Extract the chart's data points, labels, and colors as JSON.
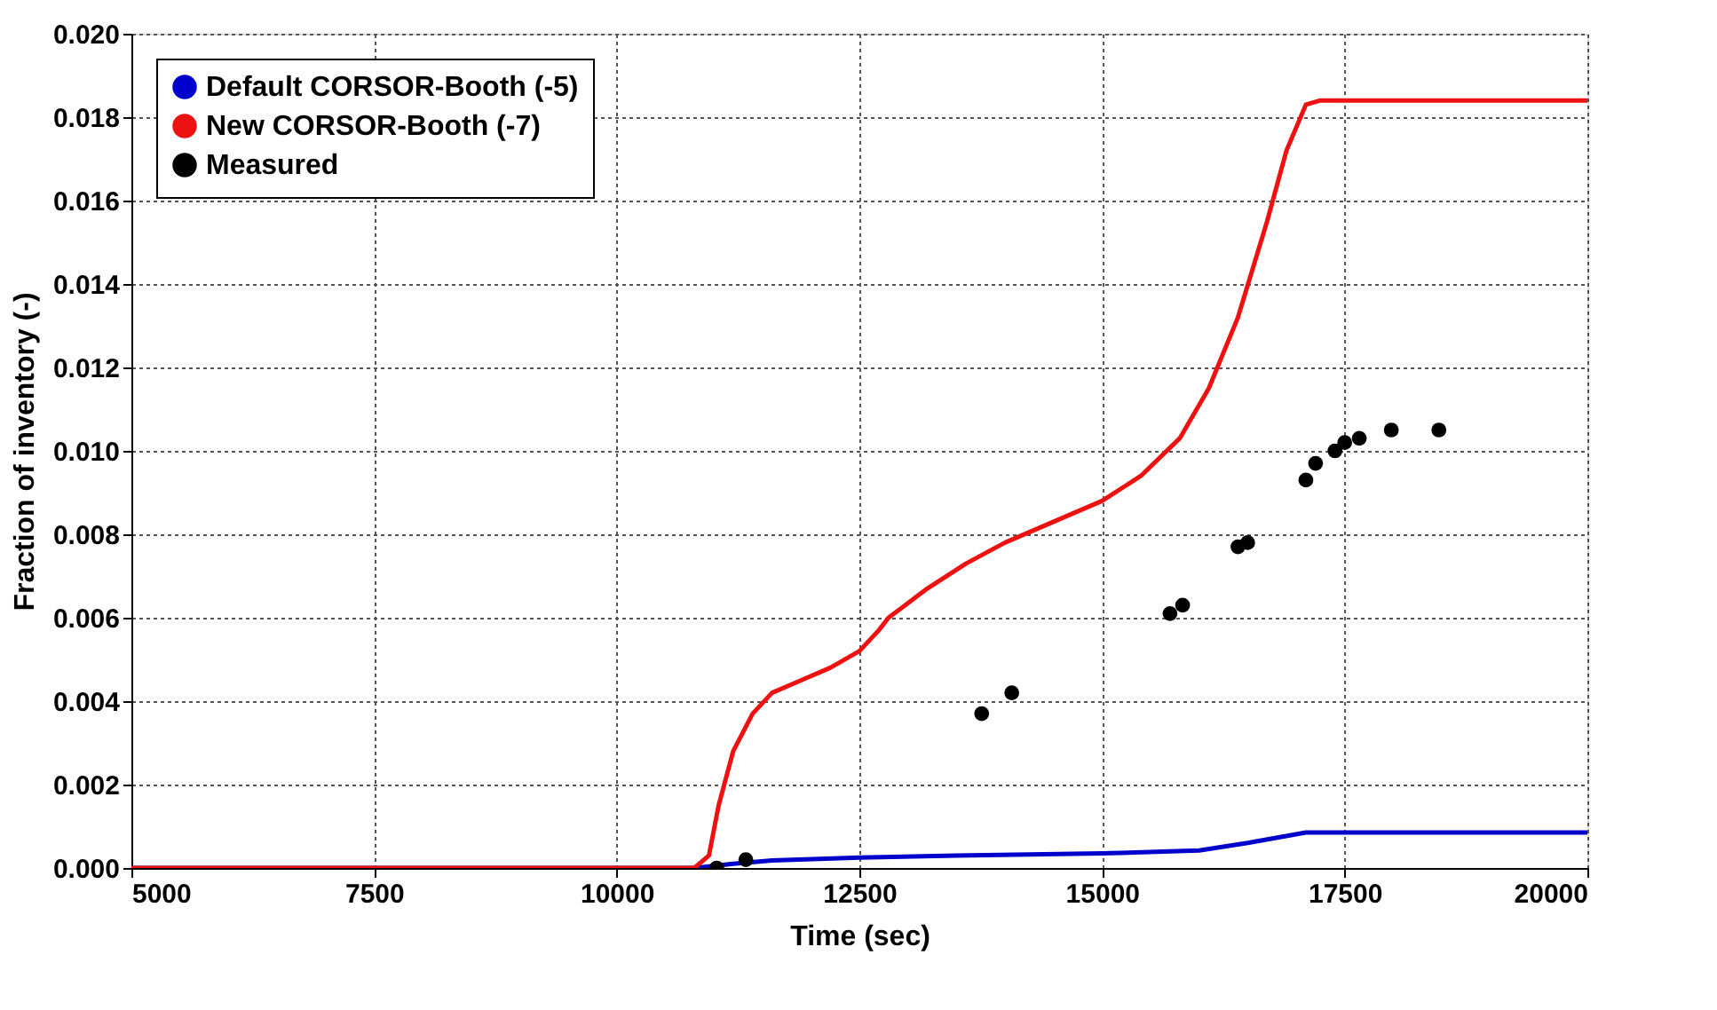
{
  "chart_data": {
    "type": "line",
    "xlabel": "Time (sec)",
    "ylabel": "Fraction of inventory (-)",
    "xlim": [
      5000,
      20000
    ],
    "xticks": [
      5000,
      7500,
      10000,
      12500,
      15000,
      17500,
      20000
    ],
    "ylim": [
      0,
      0.02
    ],
    "yticks": [
      {
        "value": 0,
        "label": "0.000"
      },
      {
        "value": 0.002,
        "label": "0.002"
      },
      {
        "value": 0.004,
        "label": "0.004"
      },
      {
        "value": 0.006,
        "label": "0.006"
      },
      {
        "value": 0.008,
        "label": "0.008"
      },
      {
        "value": 0.01,
        "label": "0.010"
      },
      {
        "value": 0.012,
        "label": "0.012"
      },
      {
        "value": 0.014,
        "label": "0.014"
      },
      {
        "value": 0.016,
        "label": "0.016"
      },
      {
        "value": 0.018,
        "label": "0.018"
      },
      {
        "value": 0.02,
        "label": "0.020"
      }
    ],
    "grid": true,
    "legend": "top left",
    "line_style": "solid",
    "series": [
      {
        "name": "Default CORSOR-Booth (-5)",
        "color": "#0000cc",
        "marker": "none",
        "x": [
          5000,
          10800,
          11200,
          11600,
          12500,
          13500,
          15000,
          16000,
          16500,
          17100,
          20000
        ],
        "values": [
          0,
          0,
          0.0001,
          0.00018,
          0.00025,
          0.0003,
          0.00035,
          0.00042,
          0.0006,
          0.00085,
          0.00085
        ]
      },
      {
        "name": "New CORSOR-Booth (-7)",
        "color": "#ee1111",
        "marker": "none",
        "x": [
          5000,
          10800,
          10950,
          11050,
          11200,
          11400,
          11600,
          11900,
          12200,
          12500,
          12700,
          12800,
          13200,
          13600,
          14000,
          14500,
          15000,
          15400,
          15800,
          16100,
          16400,
          16700,
          16900,
          17100,
          17250,
          20000
        ],
        "values": [
          0,
          0,
          0.0003,
          0.0015,
          0.0028,
          0.0037,
          0.0042,
          0.0045,
          0.0048,
          0.0052,
          0.0057,
          0.006,
          0.0067,
          0.0073,
          0.0078,
          0.0083,
          0.0088,
          0.0094,
          0.0103,
          0.0115,
          0.0132,
          0.0155,
          0.0172,
          0.0183,
          0.0184,
          0.0184
        ]
      },
      {
        "name": "Measured",
        "color": "#000000",
        "type": "scatter",
        "marker": "circle",
        "x": [
          11030,
          11330,
          13760,
          14070,
          15700,
          15830,
          16400,
          16500,
          17100,
          17200,
          17400,
          17500,
          17650,
          17980,
          18470
        ],
        "values": [
          0,
          0.0002,
          0.0037,
          0.0042,
          0.0061,
          0.0063,
          0.0077,
          0.0078,
          0.0093,
          0.0097,
          0.01,
          0.0102,
          0.0103,
          0.0105,
          0.0105
        ]
      }
    ]
  }
}
